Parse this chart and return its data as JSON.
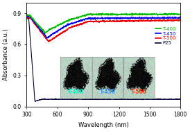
{
  "title": "",
  "xlabel": "Wavelength (nm)",
  "ylabel": "Absorbance (a.u.)",
  "xlim": [
    300,
    1800
  ],
  "ylim": [
    0.0,
    1.0
  ],
  "xticks": [
    300,
    600,
    900,
    1200,
    1500,
    1800
  ],
  "yticks": [
    0.0,
    0.3,
    0.6,
    0.9
  ],
  "series": {
    "T400": {
      "color": "#00bb00",
      "label": "T-400"
    },
    "T450": {
      "color": "#0000ee",
      "label": "T-450"
    },
    "T500": {
      "color": "#ee0000",
      "label": "T-500"
    },
    "P25": {
      "color": "#000033",
      "label": "P25"
    }
  },
  "legend_colors": {
    "T-400": "#00bb00",
    "T-450": "#0000ee",
    "T-500": "#ee0000",
    "P25": "#000033"
  },
  "inset_bg": "#b8d8c8",
  "inset_labels": [
    {
      "text": "T-400",
      "color": "#00ffcc"
    },
    {
      "text": "T-450",
      "color": "#3399ff"
    },
    {
      "text": "T-500",
      "color": "#ff3300"
    }
  ],
  "background_color": "#ffffff"
}
